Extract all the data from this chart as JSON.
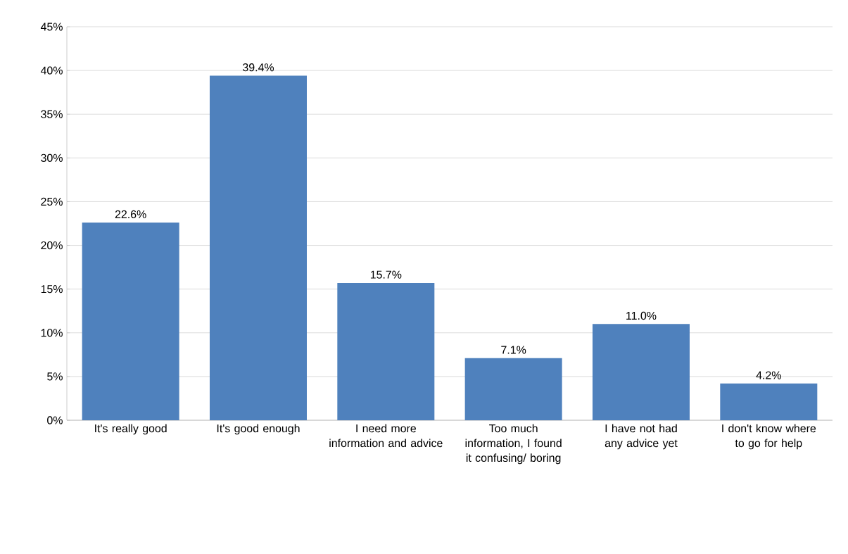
{
  "chart_data": {
    "type": "bar",
    "categories": [
      "It's really good",
      "It's good enough",
      "I need more information and advice",
      "Too much information, I found it confusing/ boring",
      "I have not had any advice yet",
      "I don't know where to go for help"
    ],
    "values": [
      22.6,
      39.4,
      15.7,
      7.1,
      11.0,
      4.2
    ],
    "value_labels": [
      "22.6%",
      "39.4%",
      "15.7%",
      "7.1%",
      "11.0%",
      "4.2%"
    ],
    "color": "#4f81bd",
    "ylim": [
      0,
      45
    ],
    "yticks": [
      {
        "value": 0,
        "label": "0%"
      },
      {
        "value": 5,
        "label": "5%"
      },
      {
        "value": 10,
        "label": "10%"
      },
      {
        "value": 15,
        "label": "15%"
      },
      {
        "value": 20,
        "label": "20%"
      },
      {
        "value": 25,
        "label": "25%"
      },
      {
        "value": 30,
        "label": "30%"
      },
      {
        "value": 35,
        "label": "35%"
      },
      {
        "value": 40,
        "label": "40%"
      },
      {
        "value": 45,
        "label": "45%"
      }
    ],
    "grid": "y"
  }
}
